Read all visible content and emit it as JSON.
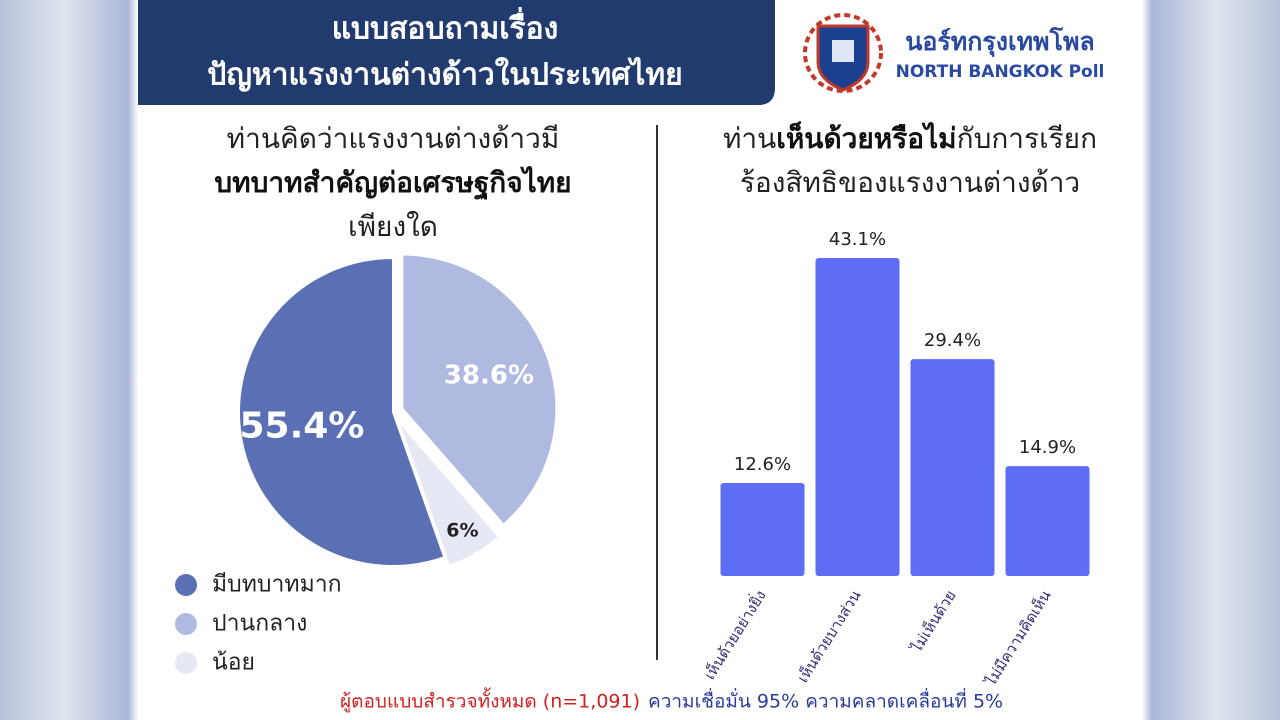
{
  "header": {
    "title_lines": [
      "แบบสอบถามเรื่อง",
      "ปัญหาแรงงานต่างด้าวในประเทศไทย"
    ],
    "brand": "นอร์ทกรุงเทพโพล",
    "brand_en": "NORTH BANGKOK Poll"
  },
  "chart_data": [
    {
      "type": "pie",
      "title_lines": [
        "ท่านคิดว่าแรงงานต่างด้าวมี",
        "บทบาทสำคัญต่อเศรษฐกิจไทย",
        "เพียงใด"
      ],
      "categories": [
        "มีบทบาทมาก",
        "ปานกลาง",
        "น้อย"
      ],
      "values": [
        55.4,
        38.6,
        6
      ],
      "value_labels": [
        "55.4%",
        "38.6%",
        "6%"
      ],
      "colors": [
        "#5a6fb4",
        "#b0bae0",
        "#e6e8f4"
      ]
    },
    {
      "type": "bar",
      "title_parts": [
        "ท่าน",
        "เห็นด้วยหรือไม่",
        "กับการเรียก",
        "ร้องสิทธิของแรงงานต่างด้าว"
      ],
      "categories": [
        "เห็นด้วยอย่างยิ่ง",
        "เห็นด้วยบางส่วน",
        "ไม่เห็นด้วย",
        "ไม่มีความคิดเห็น"
      ],
      "values": [
        12.6,
        43.1,
        29.4,
        14.9
      ],
      "value_labels": [
        "12.6%",
        "43.1%",
        "29.4%",
        "14.9%"
      ],
      "color": "#5d6ef5",
      "ylim": [
        0,
        45
      ]
    }
  ],
  "footer": {
    "sample": "ผู้ตอบแบบสำรวจทั้งหมด (n=1,091)",
    "note": "ความเชื่อมั่น 95% ความคลาดเคลื่อนที่ 5%"
  }
}
